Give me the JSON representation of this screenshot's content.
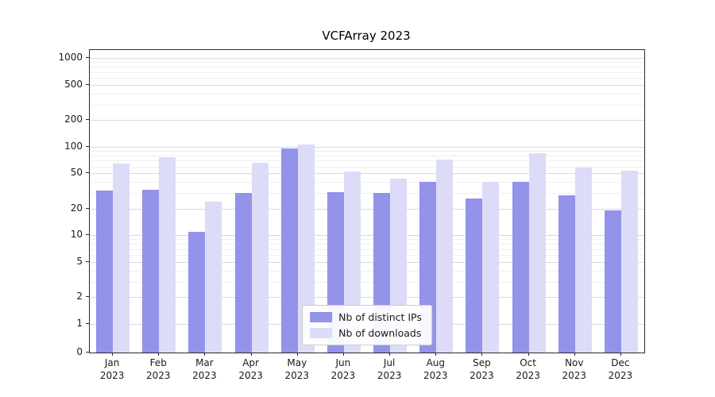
{
  "chart_data": {
    "type": "bar",
    "title": "VCFArray 2023",
    "xlabel": "",
    "ylabel": "",
    "yscale": "log",
    "grid": "horizontal",
    "legend_position": "lower center",
    "yticks": [
      0,
      1,
      2,
      5,
      10,
      20,
      50,
      100,
      200,
      500,
      1000
    ],
    "ylim": [
      0,
      1200
    ],
    "categories": [
      "Jan\n2023",
      "Feb\n2023",
      "Mar\n2023",
      "Apr\n2023",
      "May\n2023",
      "Jun\n2023",
      "Jul\n2023",
      "Aug\n2023",
      "Sep\n2023",
      "Oct\n2023",
      "Nov\n2023",
      "Dec\n2023"
    ],
    "series": [
      {
        "name": "Nb of distinct IPs",
        "color": "#9393ea",
        "values": [
          32,
          33,
          11,
          30,
          95,
          31,
          30,
          40,
          26,
          40,
          28,
          19
        ]
      },
      {
        "name": "Nb of downloads",
        "color": "#dcdcf8",
        "values": [
          65,
          76,
          24,
          66,
          105,
          52,
          44,
          72,
          40,
          84,
          58,
          54
        ]
      }
    ]
  }
}
